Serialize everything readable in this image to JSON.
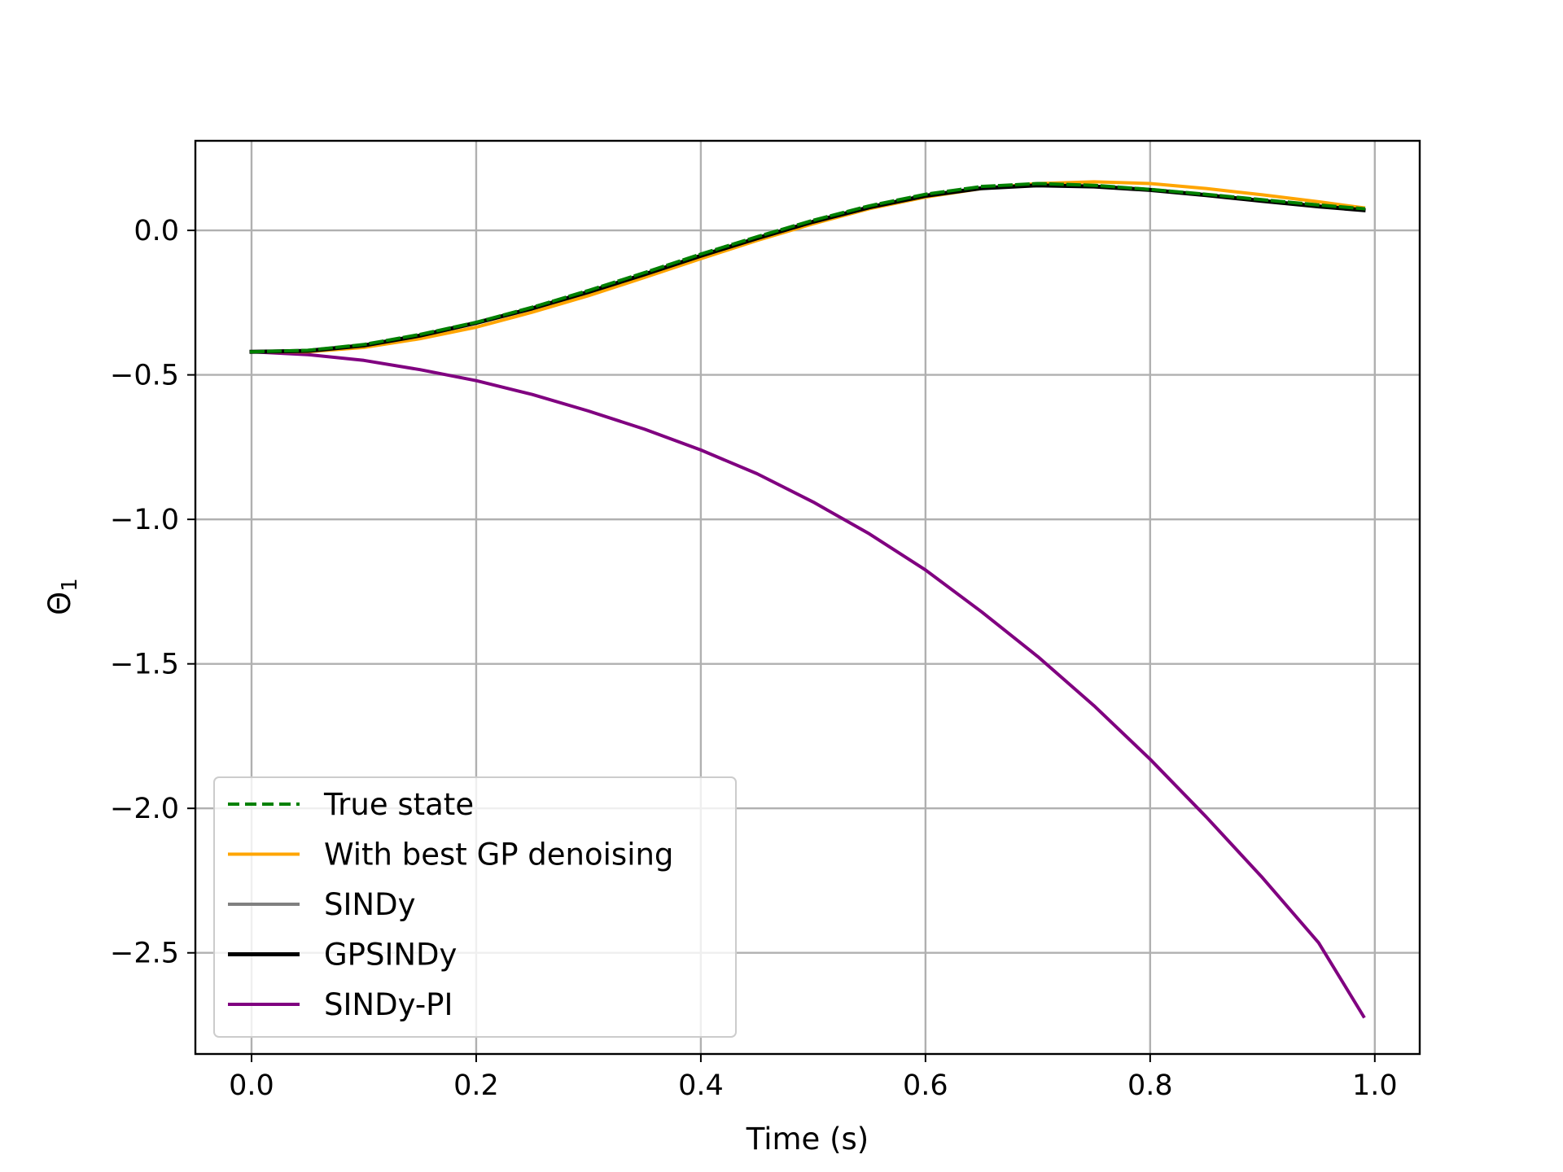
{
  "chart_data": {
    "type": "line",
    "title": "",
    "xlabel": "Time (s)",
    "ylabel": "Θ",
    "ylabel_subscript": "1",
    "xlim": [
      -0.05,
      1.04
    ],
    "ylim": [
      -2.85,
      0.31
    ],
    "xticks": [
      0.0,
      0.2,
      0.4,
      0.6,
      0.8,
      1.0
    ],
    "xtick_labels": [
      "0.0",
      "0.2",
      "0.4",
      "0.6",
      "0.8",
      "1.0"
    ],
    "yticks": [
      0.0,
      -0.5,
      -1.0,
      -1.5,
      -2.0,
      -2.5
    ],
    "ytick_labels": [
      "0.0",
      "−0.5",
      "−1.0",
      "−1.5",
      "−2.0",
      "−2.5"
    ],
    "grid": true,
    "legend_position": "lower-left",
    "x": [
      0.0,
      0.05,
      0.1,
      0.15,
      0.2,
      0.25,
      0.3,
      0.35,
      0.4,
      0.45,
      0.5,
      0.55,
      0.6,
      0.65,
      0.7,
      0.75,
      0.8,
      0.85,
      0.9,
      0.95,
      0.99
    ],
    "series": [
      {
        "name": "True state",
        "color": "#008000",
        "dash": "dashed",
        "values": [
          -0.42,
          -0.415,
          -0.395,
          -0.36,
          -0.318,
          -0.266,
          -0.208,
          -0.146,
          -0.082,
          -0.022,
          0.035,
          0.085,
          0.125,
          0.152,
          0.162,
          0.156,
          0.142,
          0.125,
          0.106,
          0.088,
          0.075
        ]
      },
      {
        "name": "With best GP denoising",
        "color": "#ffa500",
        "dash": "solid",
        "values": [
          -0.42,
          -0.42,
          -0.405,
          -0.375,
          -0.335,
          -0.283,
          -0.226,
          -0.163,
          -0.098,
          -0.035,
          0.023,
          0.075,
          0.115,
          0.145,
          0.162,
          0.168,
          0.162,
          0.145,
          0.123,
          0.099,
          0.078
        ]
      },
      {
        "name": "SINDy",
        "color": "#808080",
        "dash": "solid",
        "values": [
          -0.42,
          -0.417,
          -0.398,
          -0.364,
          -0.32,
          -0.27,
          -0.213,
          -0.152,
          -0.088,
          -0.027,
          0.03,
          0.08,
          0.12,
          0.146,
          0.156,
          0.152,
          0.14,
          0.122,
          0.102,
          0.083,
          0.07
        ]
      },
      {
        "name": "GPSINDy",
        "color": "#000000",
        "dash": "solid",
        "values": [
          -0.42,
          -0.417,
          -0.398,
          -0.364,
          -0.32,
          -0.27,
          -0.213,
          -0.152,
          -0.088,
          -0.027,
          0.03,
          0.08,
          0.12,
          0.146,
          0.156,
          0.152,
          0.14,
          0.122,
          0.102,
          0.083,
          0.07
        ]
      },
      {
        "name": "SINDy-PI",
        "color": "#800080",
        "dash": "solid",
        "values": [
          -0.42,
          -0.43,
          -0.45,
          -0.482,
          -0.52,
          -0.568,
          -0.625,
          -0.688,
          -0.76,
          -0.842,
          -0.94,
          -1.05,
          -1.175,
          -1.32,
          -1.475,
          -1.645,
          -1.83,
          -2.03,
          -2.24,
          -2.465,
          -2.72
        ]
      }
    ]
  }
}
